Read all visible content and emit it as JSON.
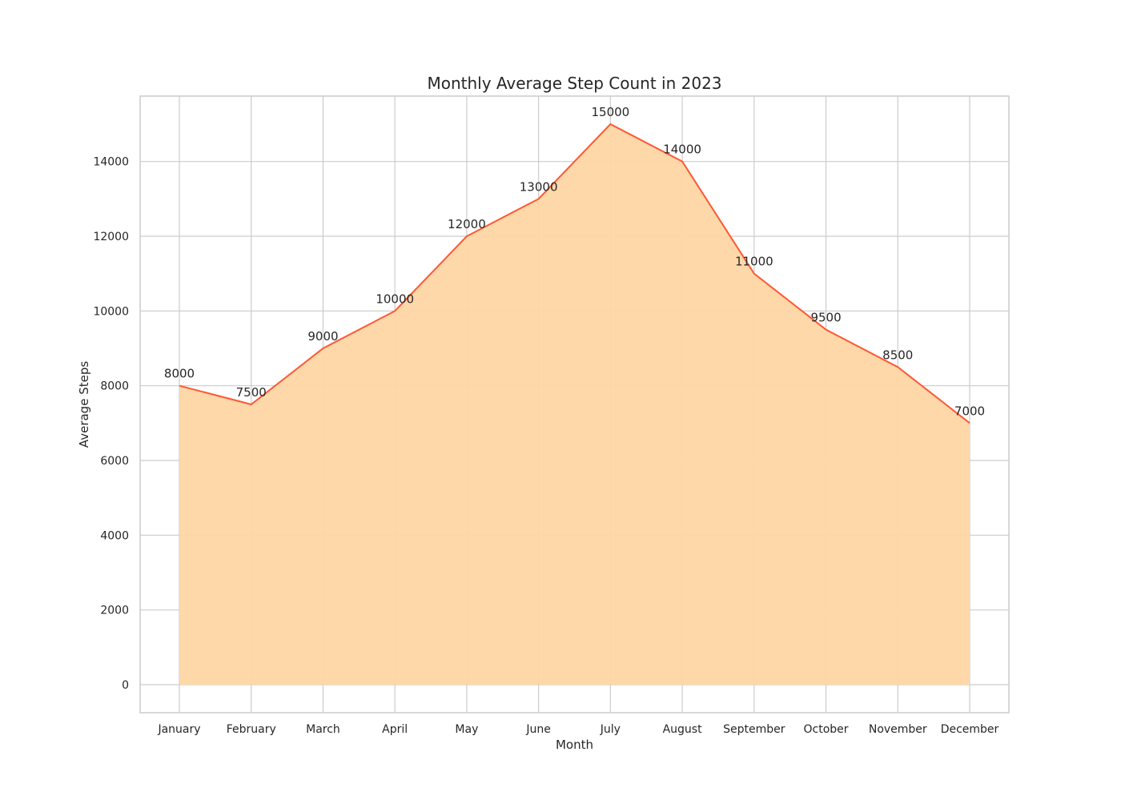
{
  "chart_data": {
    "type": "area",
    "title": "Monthly Average Step Count in 2023",
    "xlabel": "Month",
    "ylabel": "Average Steps",
    "categories": [
      "January",
      "February",
      "March",
      "April",
      "May",
      "June",
      "July",
      "August",
      "September",
      "October",
      "November",
      "December"
    ],
    "series": [
      {
        "values": [
          8000,
          7500,
          9000,
          10000,
          12000,
          13000,
          15000,
          14000,
          11000,
          9500,
          8500,
          7000
        ]
      }
    ],
    "ylim": [
      -750,
      15750
    ],
    "yticks": [
      0,
      2000,
      4000,
      6000,
      8000,
      10000,
      12000,
      14000
    ],
    "grid": true,
    "legend": false,
    "data_labels": true,
    "colors": {
      "line": "#ff5733",
      "fill": "#ffd6a5",
      "grid": "#cccccc",
      "axes_edge": "#cccccc",
      "text": "#262626"
    }
  }
}
